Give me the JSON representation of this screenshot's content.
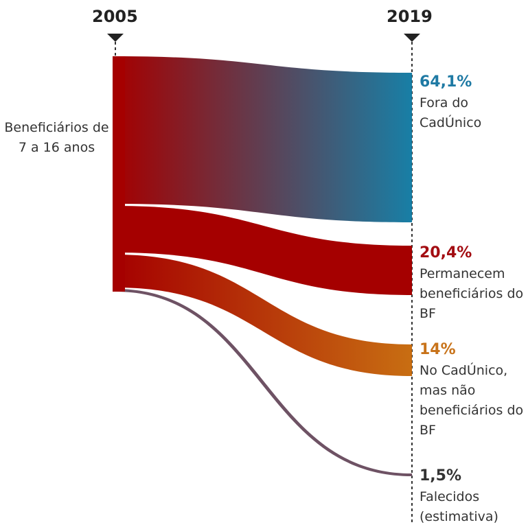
{
  "years": {
    "start": "2005",
    "end": "2019"
  },
  "source_label": "Beneficiários de 7 a 16 anos",
  "colors": {
    "source": "#a50000",
    "fora": "#187fa6",
    "permanecem": "#a50000",
    "no_cadunico": "#c86e12",
    "falecidos": "#6e5264",
    "axis": "#333333"
  },
  "flows": [
    {
      "key": "fora",
      "pct": "64,1%",
      "desc": "Fora do CadÚnico",
      "pct_color": "#1f7aa4"
    },
    {
      "key": "permanecem",
      "pct": "20,4%",
      "desc": "Permanecem beneficiários do BF",
      "pct_color": "#a30d12"
    },
    {
      "key": "no_cadunico",
      "pct": "14%",
      "desc": "No CadÚnico, mas não beneficiários do BF",
      "pct_color": "#c8731a"
    },
    {
      "key": "falecidos",
      "pct": "1,5%",
      "desc": "Falecidos (estimativa)",
      "pct_color": "#333333"
    }
  ],
  "chart_data": {
    "type": "sankey",
    "source": "Beneficiários de 7 a 16 anos",
    "from": "2005",
    "to": "2019",
    "values": [
      64.1,
      20.4,
      14.0,
      1.5
    ],
    "categories": [
      "Fora do CadÚnico",
      "Permanecem beneficiários do BF",
      "No CadÚnico, mas não beneficiários do BF",
      "Falecidos (estimativa)"
    ],
    "unit": "%"
  }
}
